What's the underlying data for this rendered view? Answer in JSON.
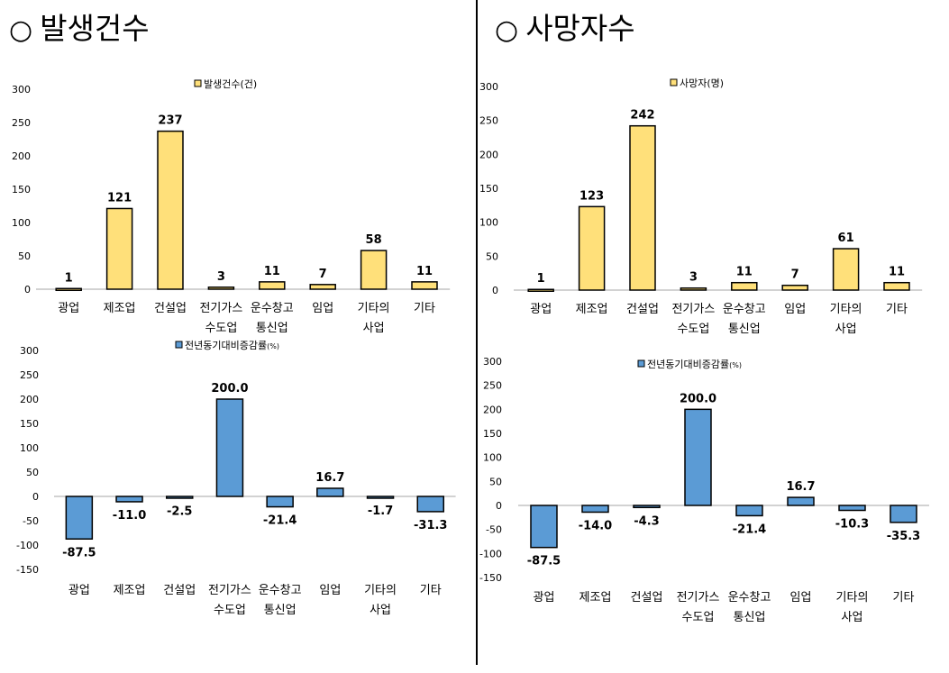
{
  "sections": [
    {
      "title": "발생건수",
      "title_mark": "○"
    },
    {
      "title": "사망자수",
      "title_mark": "○"
    }
  ],
  "chart_data": [
    {
      "type": "bar",
      "panel": "top-left",
      "legend": {
        "label": "발생건수(건)",
        "placement": "top-center"
      },
      "categories": [
        [
          "광업"
        ],
        [
          "제조업"
        ],
        [
          "건설업"
        ],
        [
          "전기가스",
          "수도업"
        ],
        [
          "운수창고",
          "통신업"
        ],
        [
          "임업"
        ],
        [
          "기타의",
          "사업"
        ],
        [
          "기타"
        ]
      ],
      "values": [
        1,
        121,
        237,
        3,
        11,
        7,
        58,
        11
      ],
      "data_labels": [
        "1",
        "121",
        "237",
        "3",
        "11",
        "7",
        "58",
        "11"
      ],
      "ylim": [
        0,
        300
      ],
      "yticks": [
        0,
        50,
        100,
        150,
        200,
        250,
        300
      ],
      "color": "#FFE07A",
      "grid": false
    },
    {
      "type": "bar",
      "panel": "top-right",
      "legend": {
        "label": "사망자(명)",
        "placement": "top-center"
      },
      "categories": [
        [
          "광업"
        ],
        [
          "제조업"
        ],
        [
          "건설업"
        ],
        [
          "전기가스",
          "수도업"
        ],
        [
          "운수창고",
          "통신업"
        ],
        [
          "임업"
        ],
        [
          "기타의",
          "사업"
        ],
        [
          "기타"
        ]
      ],
      "values": [
        1,
        123,
        242,
        3,
        11,
        7,
        61,
        11
      ],
      "data_labels": [
        "1",
        "123",
        "242",
        "3",
        "11",
        "7",
        "61",
        "11"
      ],
      "ylim": [
        0,
        300
      ],
      "yticks": [
        0,
        50,
        100,
        150,
        200,
        250,
        300
      ],
      "color": "#FFE07A",
      "grid": false
    },
    {
      "type": "bar",
      "panel": "bottom-left",
      "legend": {
        "label": "전년동기대비증감률",
        "unit": "(%)",
        "placement": "top-center"
      },
      "categories": [
        [
          "광업"
        ],
        [
          "제조업"
        ],
        [
          "건설업"
        ],
        [
          "전기가스",
          "수도업"
        ],
        [
          "운수창고",
          "통신업"
        ],
        [
          "임업"
        ],
        [
          "기타의",
          "사업"
        ],
        [
          "기타"
        ]
      ],
      "values": [
        -87.5,
        -11.0,
        -2.5,
        200.0,
        -21.4,
        16.7,
        -1.7,
        -31.3
      ],
      "data_labels": [
        "-87.5",
        "-11.0",
        "-2.5",
        "200.0",
        "-21.4",
        "16.7",
        "-1.7",
        "-31.3"
      ],
      "ylim": [
        -150,
        300
      ],
      "yticks": [
        -150,
        -100,
        -50,
        0,
        50,
        100,
        150,
        200,
        250,
        300
      ],
      "color": "#5B9BD5",
      "grid": false
    },
    {
      "type": "bar",
      "panel": "bottom-right",
      "legend": {
        "label": "전년동기대비증감률",
        "unit": "(%)",
        "placement": "top-center"
      },
      "categories": [
        [
          "광업"
        ],
        [
          "제조업"
        ],
        [
          "건설업"
        ],
        [
          "전기가스",
          "수도업"
        ],
        [
          "운수창고",
          "통신업"
        ],
        [
          "임업"
        ],
        [
          "기타의",
          "사업"
        ],
        [
          "기타"
        ]
      ],
      "values": [
        -87.5,
        -14.0,
        -4.3,
        200.0,
        -21.4,
        16.7,
        -10.3,
        -35.3
      ],
      "data_labels": [
        "-87.5",
        "-14.0",
        "-4.3",
        "200.0",
        "-21.4",
        "16.7",
        "-10.3",
        "-35.3"
      ],
      "ylim": [
        -150,
        300
      ],
      "yticks": [
        -150,
        -100,
        -50,
        0,
        50,
        100,
        150,
        200,
        250,
        300
      ],
      "color": "#5B9BD5",
      "grid": false
    }
  ]
}
